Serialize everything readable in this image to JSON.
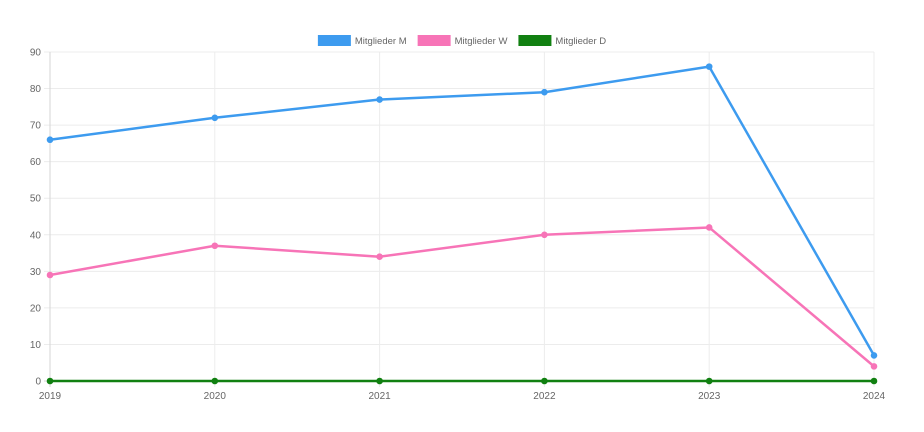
{
  "chart_data": {
    "type": "line",
    "title": "",
    "xlabel": "",
    "ylabel": "",
    "categories": [
      "2019",
      "2020",
      "2021",
      "2022",
      "2023",
      "2024"
    ],
    "ylim": [
      0,
      90
    ],
    "yticks": [
      0,
      10,
      20,
      30,
      40,
      50,
      60,
      70,
      80,
      90
    ],
    "grid": true,
    "legend_position": "top-center",
    "series": [
      {
        "name": "Mitglieder M",
        "color": "#3d9bef",
        "values": [
          66,
          72,
          77,
          79,
          86,
          7
        ]
      },
      {
        "name": "Mitglieder W",
        "color": "#f774b7",
        "values": [
          29,
          37,
          34,
          40,
          42,
          4
        ]
      },
      {
        "name": "Mitglieder D",
        "color": "#118011",
        "values": [
          0,
          0,
          0,
          0,
          0,
          0
        ]
      }
    ]
  }
}
